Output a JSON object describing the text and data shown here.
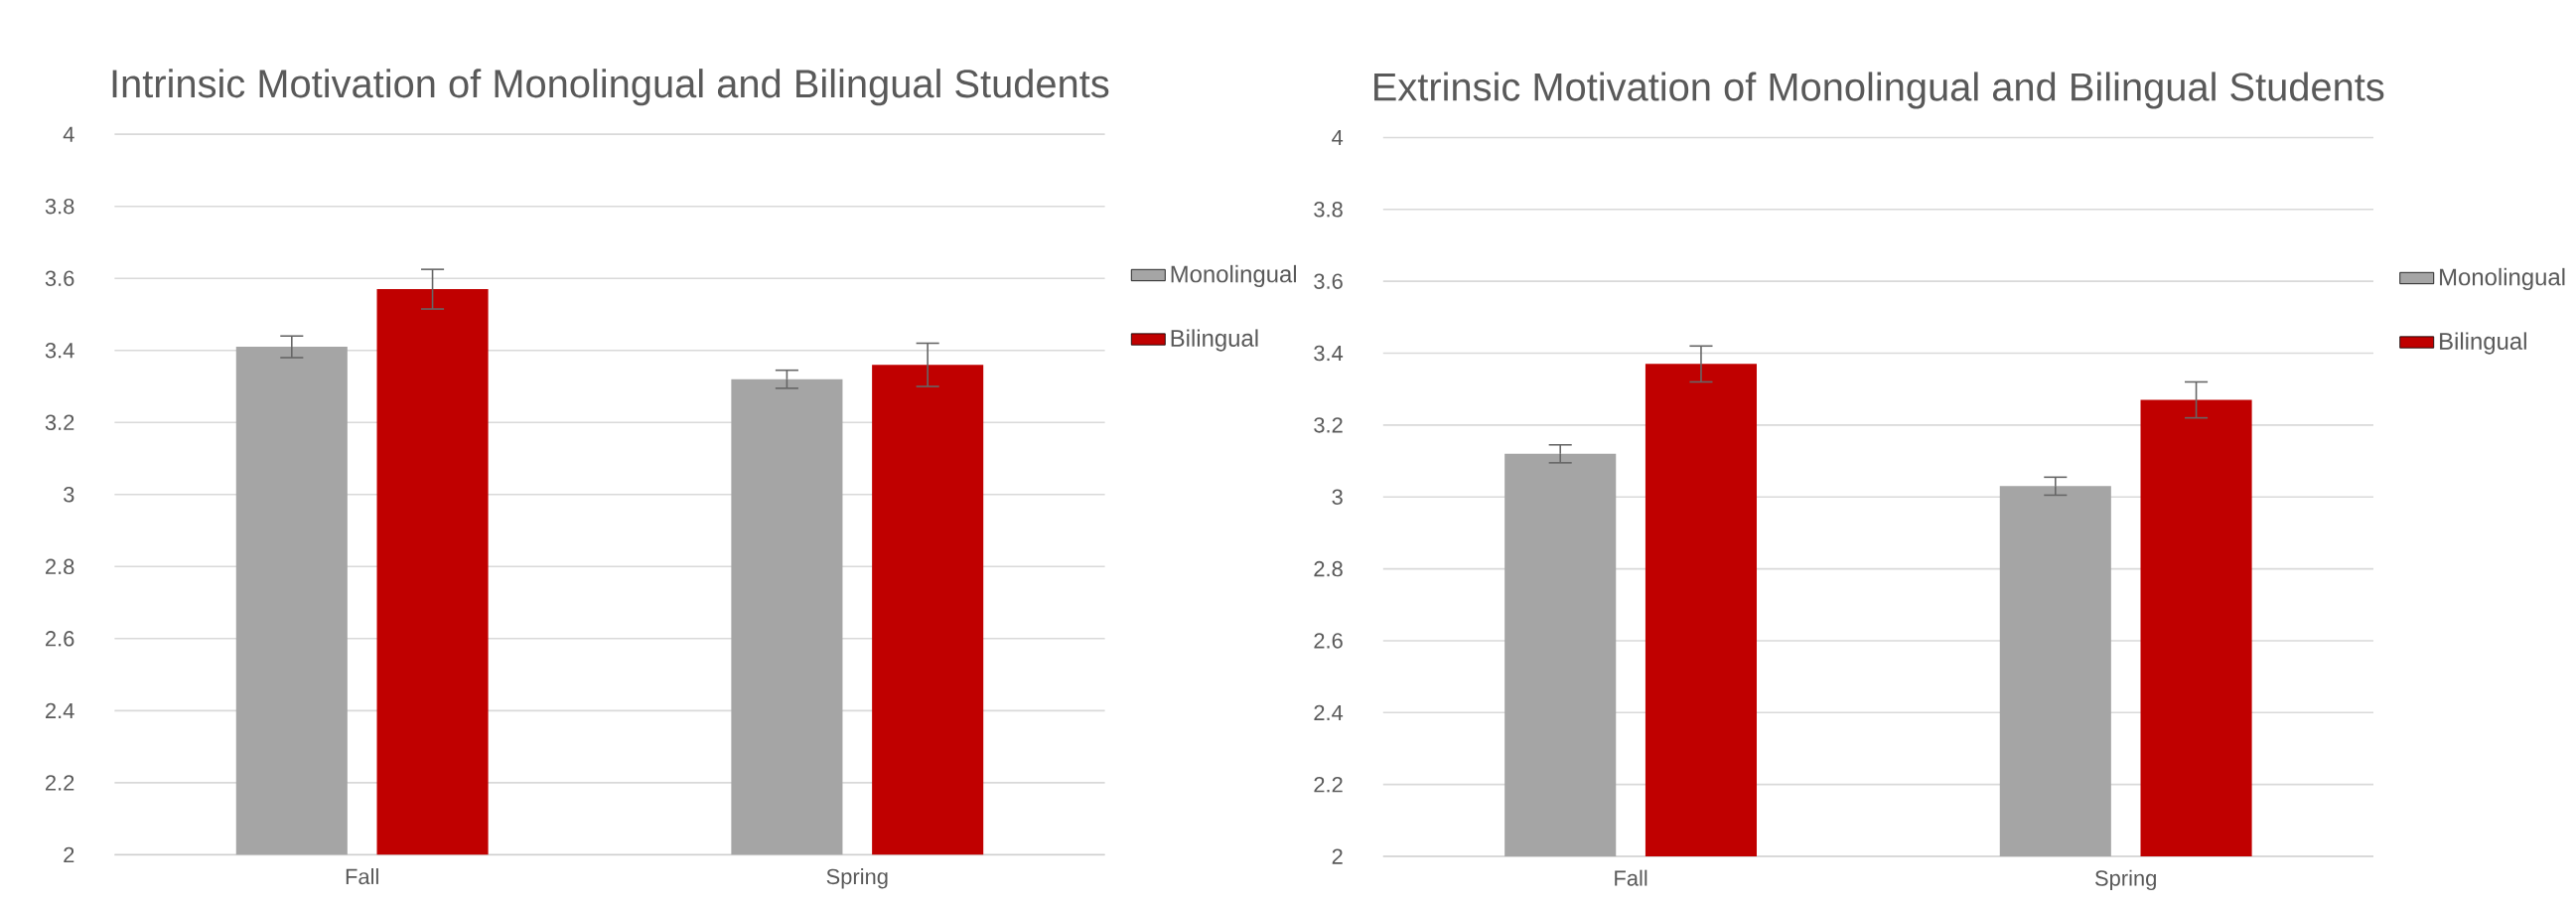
{
  "chart_data": [
    {
      "type": "bar",
      "title": "Intrinsic Motivation of Monolingual and Bilingual Students",
      "categories": [
        "Fall",
        "Spring"
      ],
      "series": [
        {
          "name": "Monolingual",
          "color": "#a5a5a5",
          "values": [
            3.41,
            3.32
          ],
          "errors": [
            0.03,
            0.025
          ]
        },
        {
          "name": "Bilingual",
          "color": "#c00000",
          "values": [
            3.57,
            3.36
          ],
          "errors": [
            0.055,
            0.06
          ]
        }
      ],
      "ylim": [
        2,
        4
      ],
      "yticks": [
        2,
        2.2,
        2.4,
        2.6,
        2.8,
        3,
        3.2,
        3.4,
        3.6,
        3.8,
        4
      ],
      "grid": "y",
      "legend": "right"
    },
    {
      "type": "bar",
      "title": "Extrinsic Motivation of Monolingual and Bilingual Students",
      "categories": [
        "Fall",
        "Spring"
      ],
      "series": [
        {
          "name": "Monolingual",
          "color": "#a5a5a5",
          "values": [
            3.12,
            3.03
          ],
          "errors": [
            0.025,
            0.025
          ]
        },
        {
          "name": "Bilingual",
          "color": "#c00000",
          "values": [
            3.37,
            3.27
          ],
          "errors": [
            0.05,
            0.05
          ]
        }
      ],
      "ylim": [
        2,
        4
      ],
      "yticks": [
        2,
        2.2,
        2.4,
        2.6,
        2.8,
        3,
        3.2,
        3.4,
        3.6,
        3.8,
        4
      ],
      "grid": "y",
      "legend": "right"
    }
  ]
}
